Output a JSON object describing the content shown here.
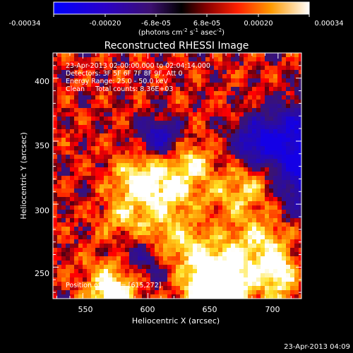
{
  "colorbar": {
    "tick_labels": [
      "-0.00034",
      "-0.00020",
      "-6.8e-05",
      "6.8e-05",
      "0.00020",
      "0.00034"
    ],
    "units_prefix": "(photons cm",
    "units_exp1": "-2",
    "units_mid": " s",
    "units_exp2": "-1",
    "units_mid2": " asec",
    "units_exp3": "-2",
    "units_suffix": ")",
    "min": -0.00034,
    "max": 0.00034
  },
  "title": "Reconstructed RHESSI Image",
  "annotations": {
    "time_range": "23-Apr-2013 02:00:00.000 to 02:04:14.000",
    "detectors": "Detectors: 3F 5F 6F 7F 8F 9F, Att 0",
    "energy_range": "Energy Range: 25.0 - 50.0 keV",
    "clean_counts": "Clean     Total counts: 8.36E+03",
    "peak_position": "Position of Peak = [615,272]"
  },
  "axes": {
    "xlabel": "Heliocentric X (arcsec)",
    "ylabel": "Heliocentric Y (arcsec)",
    "x_ticks": [
      "550",
      "600",
      "650",
      "700"
    ],
    "y_ticks": [
      "250",
      "300",
      "350",
      "400"
    ],
    "xlim": [
      527,
      718
    ],
    "ylim": [
      225,
      420
    ]
  },
  "timestamp": "23-Apr-2013 04:09",
  "colors": {
    "background": "#000000",
    "text": "#ffffff"
  }
}
